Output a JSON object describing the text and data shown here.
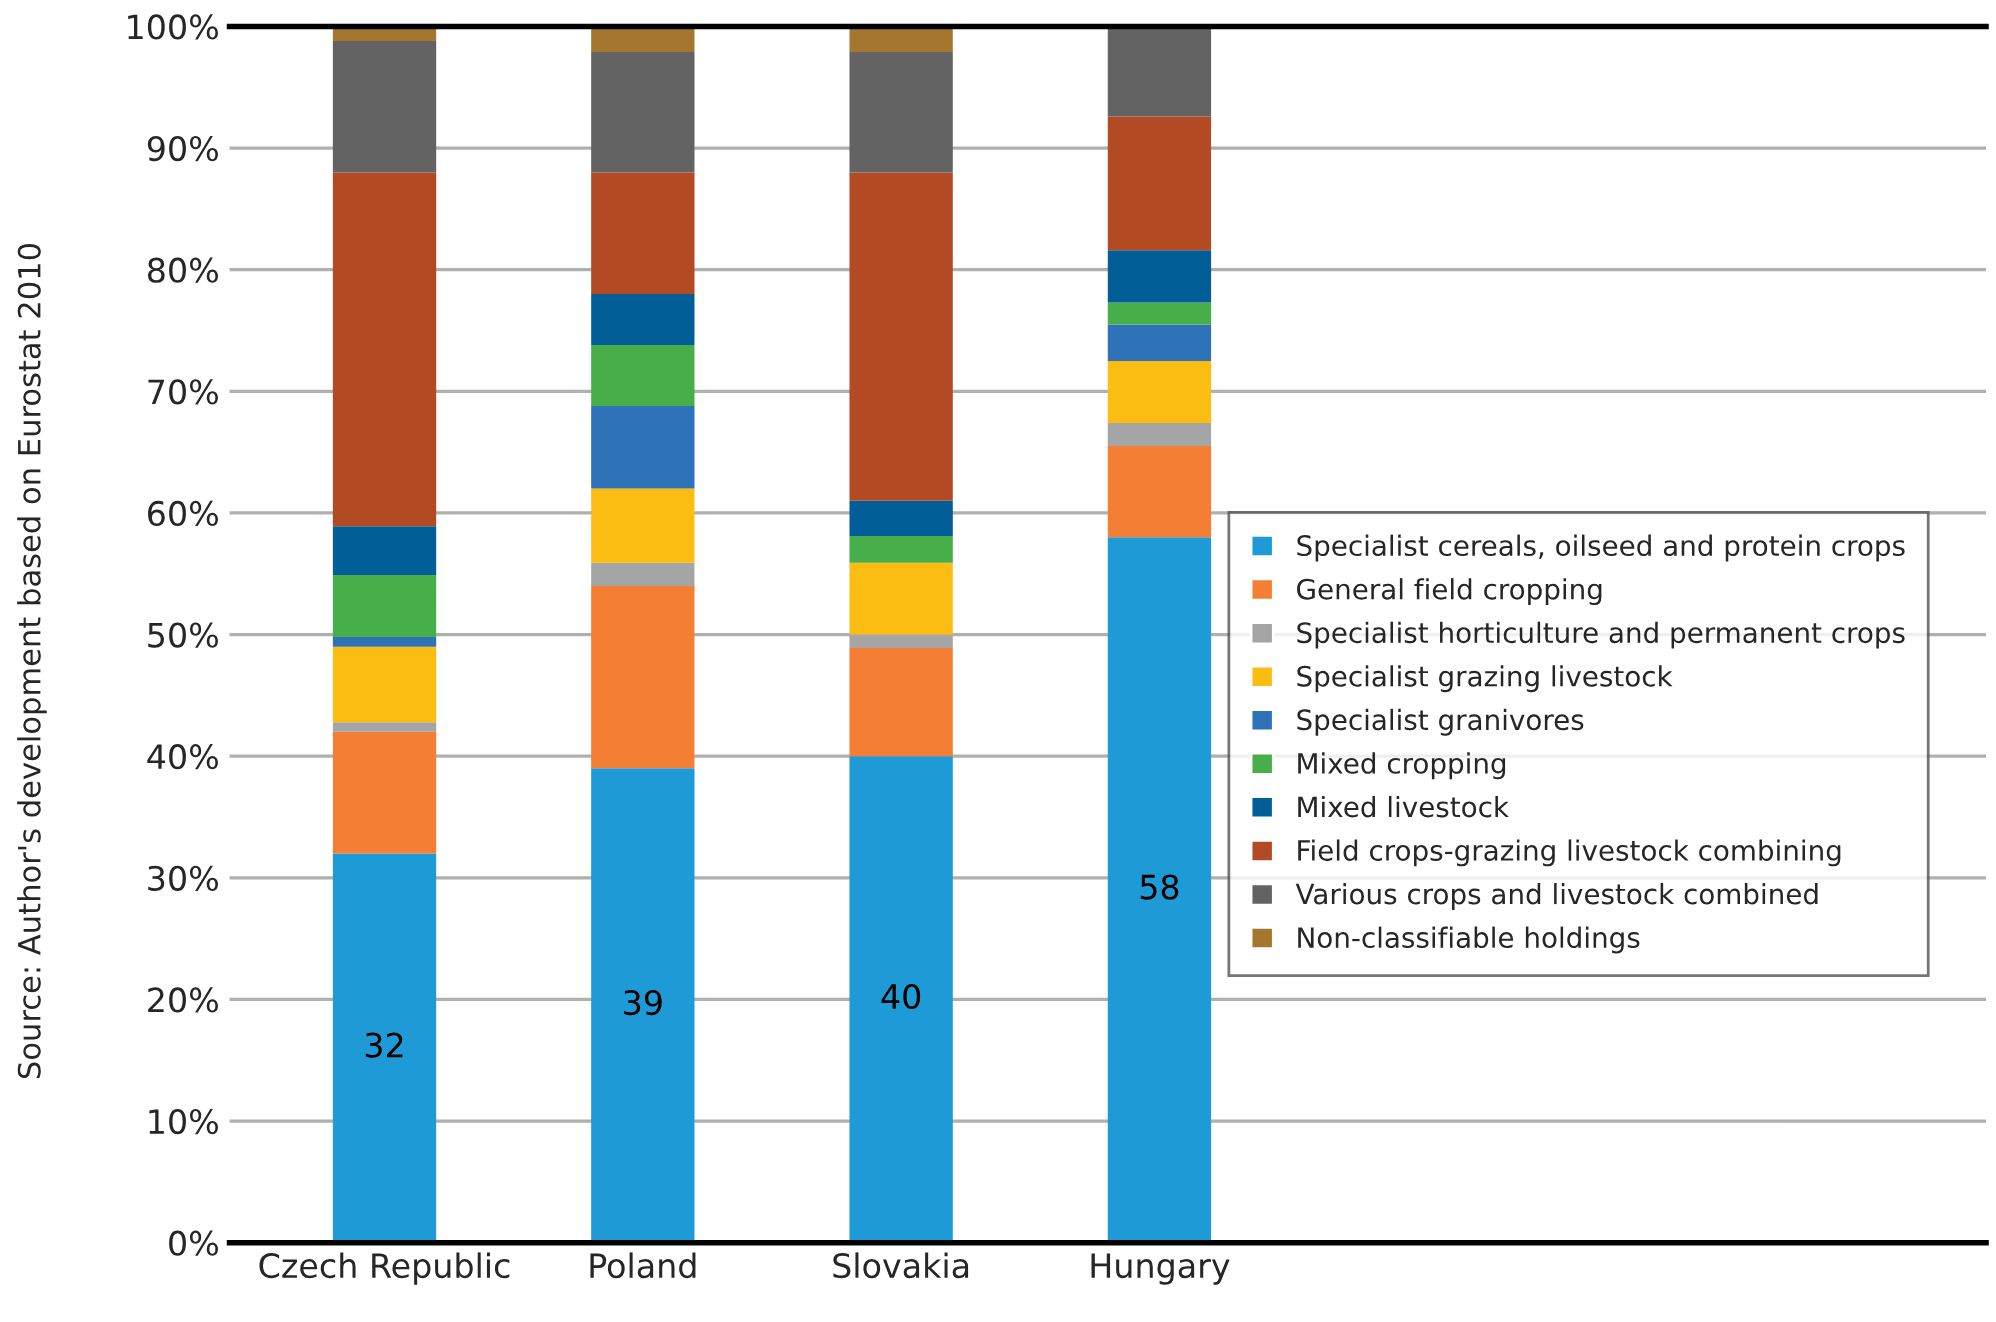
{
  "chart_data": {
    "type": "bar",
    "stacked": true,
    "categories": [
      "Czech Republic",
      "Poland",
      "Slovakia",
      "Hungary"
    ],
    "series": [
      {
        "name": "Specialist cereals, oilseed and protein crops",
        "color": "#1e9bd7",
        "values": [
          32,
          39,
          40,
          58
        ],
        "value_labels": [
          "32",
          "39",
          "40",
          "58"
        ]
      },
      {
        "name": "General field cropping",
        "color": "#f47f34",
        "values": [
          10,
          15,
          8.9,
          7.5
        ]
      },
      {
        "name": "Specialist horticulture and permanent crops",
        "color": "#a5a5a5",
        "values": [
          0.8,
          1.9,
          1.1,
          1.9
        ]
      },
      {
        "name": "Specialist grazing livestock",
        "color": "#fcbd12",
        "values": [
          6.2,
          6.1,
          5.9,
          5.1
        ]
      },
      {
        "name": "Specialist granivores",
        "color": "#2e72b8",
        "values": [
          0.8,
          6.8,
          0,
          3
        ]
      },
      {
        "name": "Mixed cropping",
        "color": "#47ae4a",
        "values": [
          5.1,
          5,
          2.2,
          1.8
        ]
      },
      {
        "name": "Mixed livestock",
        "color": "#025e96",
        "values": [
          4,
          4.2,
          2.9,
          4.3
        ]
      },
      {
        "name": "Field crops-grazing livestock combining",
        "color": "#b34a24",
        "values": [
          29.1,
          10,
          27,
          11
        ]
      },
      {
        "name": "Various crops and livestock combined",
        "color": "#636363",
        "values": [
          10.8,
          9.9,
          9.9,
          7.4
        ]
      },
      {
        "name": "Non-classifiable holdings",
        "color": "#a5772e",
        "values": [
          1.2,
          2.1,
          2.1,
          0
        ]
      }
    ],
    "ylim": [
      0,
      100
    ],
    "yticks": [
      {
        "value": 0,
        "label": "0%"
      },
      {
        "value": 10,
        "label": "10%"
      },
      {
        "value": 20,
        "label": "20%"
      },
      {
        "value": 30,
        "label": "30%"
      },
      {
        "value": 40,
        "label": "40%"
      },
      {
        "value": 50,
        "label": "50%"
      },
      {
        "value": 60,
        "label": "60%"
      },
      {
        "value": 70,
        "label": "70%"
      },
      {
        "value": 80,
        "label": "80%"
      },
      {
        "value": 90,
        "label": "90%"
      },
      {
        "value": 100,
        "label": "100%"
      }
    ],
    "grid": "y",
    "legend": "center right",
    "annotations": [
      "Source: Author's development based on Eurostat 2010"
    ]
  }
}
